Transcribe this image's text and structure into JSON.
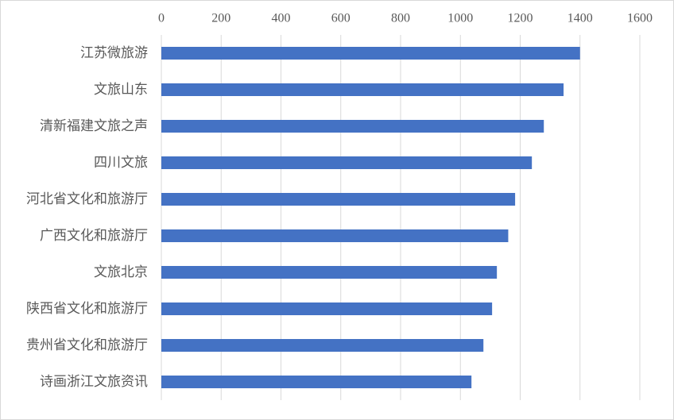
{
  "chart_data": {
    "type": "bar",
    "orientation": "horizontal",
    "categories": [
      "江苏微旅游",
      "文旅山东",
      "清新福建文旅之声",
      "四川文旅",
      "河北省文化和旅游厅",
      "广西文化和旅游厅",
      "文旅北京",
      "陕西省文化和旅游厅",
      "贵州省文化和旅游厅",
      "诗画浙江文旅资讯"
    ],
    "values": [
      1400,
      1345,
      1279,
      1239,
      1183,
      1160,
      1122,
      1106,
      1077,
      1037
    ],
    "color": "#4472c4",
    "xlim": [
      0,
      1600
    ],
    "xticks": [
      0,
      200,
      400,
      600,
      800,
      1000,
      1200,
      1400,
      1600
    ],
    "grid": true
  }
}
